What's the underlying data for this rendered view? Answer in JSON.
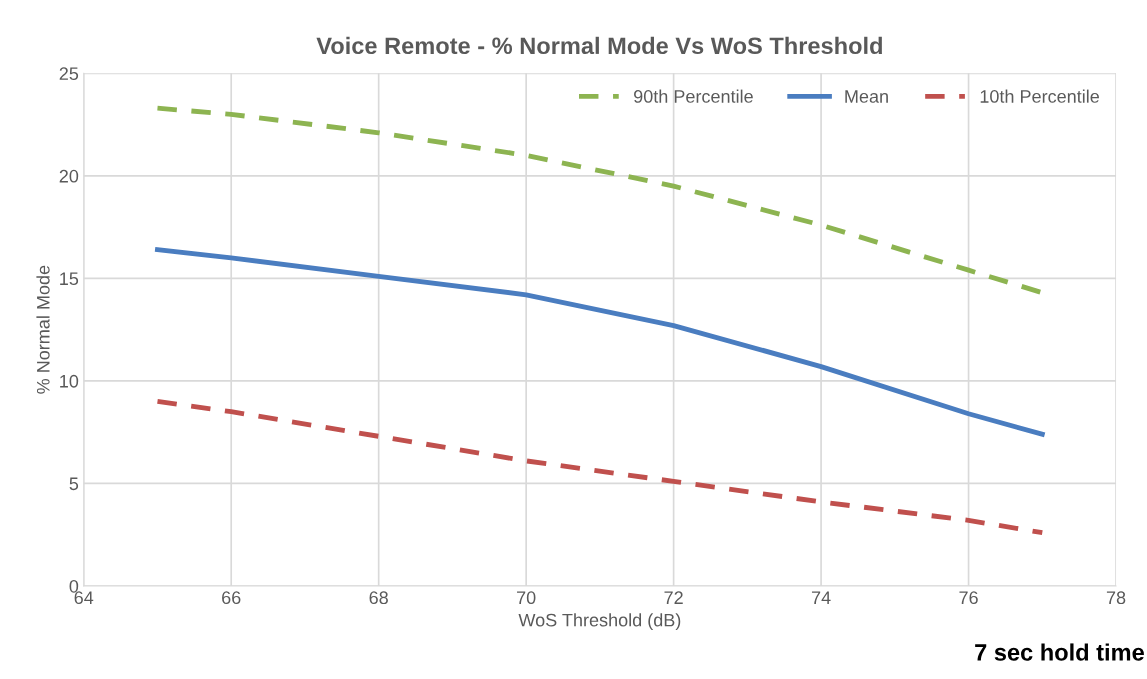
{
  "chart_data": {
    "type": "line",
    "title": "Voice Remote - % Normal Mode Vs WoS Threshold",
    "xlabel": "WoS Threshold (dB)",
    "ylabel": "% Normal Mode",
    "x": [
      65,
      66,
      68,
      70,
      72,
      74,
      76,
      77
    ],
    "series": [
      {
        "name": "90th Percentile",
        "color": "#8db451",
        "line_style": "dashed",
        "values": [
          23.3,
          23.0,
          22.1,
          21.0,
          19.5,
          17.6,
          15.4,
          14.3
        ]
      },
      {
        "name": "Mean",
        "color": "#4a7dc0",
        "line_style": "solid",
        "values": [
          16.4,
          16.0,
          15.1,
          14.2,
          12.7,
          10.7,
          8.4,
          7.4
        ]
      },
      {
        "name": "10th Percentile",
        "color": "#c0504d",
        "line_style": "dashed",
        "values": [
          9.0,
          8.5,
          7.3,
          6.1,
          5.1,
          4.1,
          3.2,
          2.6
        ]
      }
    ],
    "xlim": [
      64,
      78
    ],
    "xticks": [
      64,
      66,
      68,
      70,
      72,
      74,
      76,
      78
    ],
    "ylim": [
      0,
      25
    ],
    "yticks": [
      0,
      5,
      10,
      15,
      20,
      25
    ],
    "grid": true,
    "legend": "top right",
    "marker": "none",
    "annotations": [
      "7 sec hold time"
    ]
  }
}
